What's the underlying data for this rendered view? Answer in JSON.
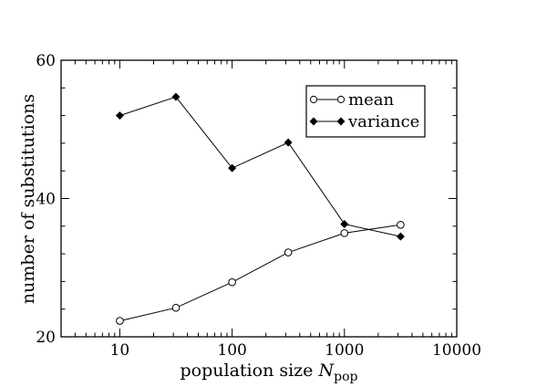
{
  "chart_data": {
    "type": "line",
    "title": "",
    "x_scale": "log",
    "xlabel": "population size ",
    "xlabel_symbol": "N",
    "xlabel_subscript": "pop",
    "ylabel": "number of substitutions",
    "xlim": [
      3,
      10000
    ],
    "ylim": [
      20,
      60
    ],
    "x_ticks": [
      10,
      100,
      1000,
      10000
    ],
    "x_tick_labels": [
      "10",
      "100",
      "1000",
      "10000"
    ],
    "y_ticks": [
      20,
      40,
      60
    ],
    "y_tick_labels": [
      "20",
      "40",
      "60"
    ],
    "grid": false,
    "legend_position": "top-right",
    "series": [
      {
        "name": "mean",
        "marker": "open-circle",
        "color": "#000000",
        "x": [
          10,
          31.6,
          100,
          316,
          1000,
          3162
        ],
        "y": [
          22.3,
          24.2,
          27.9,
          32.2,
          35.0,
          36.2
        ]
      },
      {
        "name": "variance",
        "marker": "filled-diamond",
        "color": "#000000",
        "x": [
          10,
          31.6,
          100,
          316,
          1000,
          3162
        ],
        "y": [
          52.0,
          54.7,
          44.4,
          48.1,
          36.3,
          34.5
        ]
      }
    ]
  }
}
